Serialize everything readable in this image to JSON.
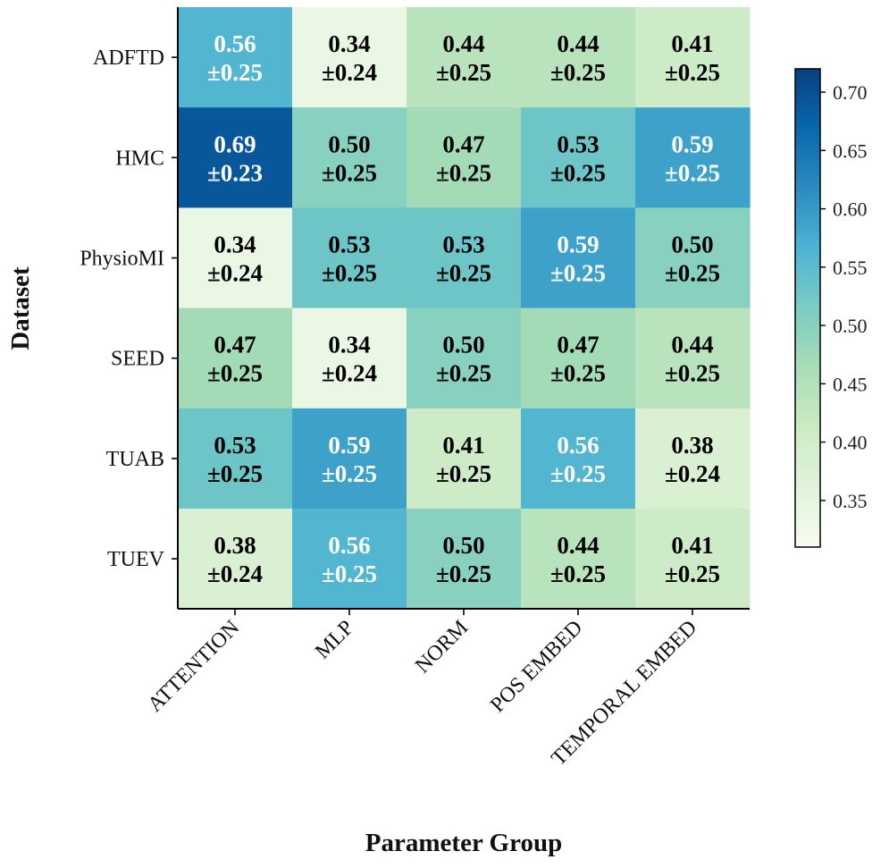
{
  "chart_data": {
    "type": "heatmap",
    "xlabel": "Parameter Group",
    "ylabel": "Dataset",
    "x_categories": [
      "ATTENTION",
      "MLP",
      "NORM",
      "POS EMBED",
      "TEMPORAL EMBED"
    ],
    "y_categories": [
      "ADFTD",
      "HMC",
      "PhysioMI",
      "SEED",
      "TUAB",
      "TUEV"
    ],
    "values": [
      [
        0.56,
        0.34,
        0.44,
        0.44,
        0.41
      ],
      [
        0.69,
        0.5,
        0.47,
        0.53,
        0.59
      ],
      [
        0.34,
        0.53,
        0.53,
        0.59,
        0.5
      ],
      [
        0.47,
        0.34,
        0.5,
        0.47,
        0.44
      ],
      [
        0.53,
        0.59,
        0.41,
        0.56,
        0.38
      ],
      [
        0.38,
        0.56,
        0.5,
        0.44,
        0.41
      ]
    ],
    "value_labels": [
      [
        "0.56",
        "0.34",
        "0.44",
        "0.44",
        "0.41"
      ],
      [
        "0.69",
        "0.50",
        "0.47",
        "0.53",
        "0.59"
      ],
      [
        "0.34",
        "0.53",
        "0.53",
        "0.59",
        "0.50"
      ],
      [
        "0.47",
        "0.34",
        "0.50",
        "0.47",
        "0.44"
      ],
      [
        "0.53",
        "0.59",
        "0.41",
        "0.56",
        "0.38"
      ],
      [
        "0.38",
        "0.56",
        "0.50",
        "0.44",
        "0.41"
      ]
    ],
    "std_labels": [
      [
        "±0.25",
        "±0.24",
        "±0.25",
        "±0.25",
        "±0.25"
      ],
      [
        "±0.23",
        "±0.25",
        "±0.25",
        "±0.25",
        "±0.25"
      ],
      [
        "±0.24",
        "±0.25",
        "±0.25",
        "±0.25",
        "±0.25"
      ],
      [
        "±0.25",
        "±0.24",
        "±0.25",
        "±0.25",
        "±0.25"
      ],
      [
        "±0.25",
        "±0.25",
        "±0.25",
        "±0.25",
        "±0.24"
      ],
      [
        "±0.24",
        "±0.25",
        "±0.25",
        "±0.25",
        "±0.25"
      ]
    ],
    "colorbar": {
      "range": [
        0.31,
        0.72
      ],
      "ticks": [
        0.35,
        0.4,
        0.45,
        0.5,
        0.55,
        0.6,
        0.65,
        0.7
      ],
      "tick_labels": [
        "0.35",
        "0.40",
        "0.45",
        "0.50",
        "0.55",
        "0.60",
        "0.65",
        "0.70"
      ],
      "colormap": "GnBu",
      "colors": [
        "#f7fcf0",
        "#e0f3db",
        "#ccebc5",
        "#a8ddb5",
        "#7bccc4",
        "#4eb3d3",
        "#2b8cbe",
        "#0868ac",
        "#084081"
      ]
    },
    "text_color_light": "#ffffff",
    "text_color_dark": "#000000",
    "light_text_threshold": 0.55
  }
}
